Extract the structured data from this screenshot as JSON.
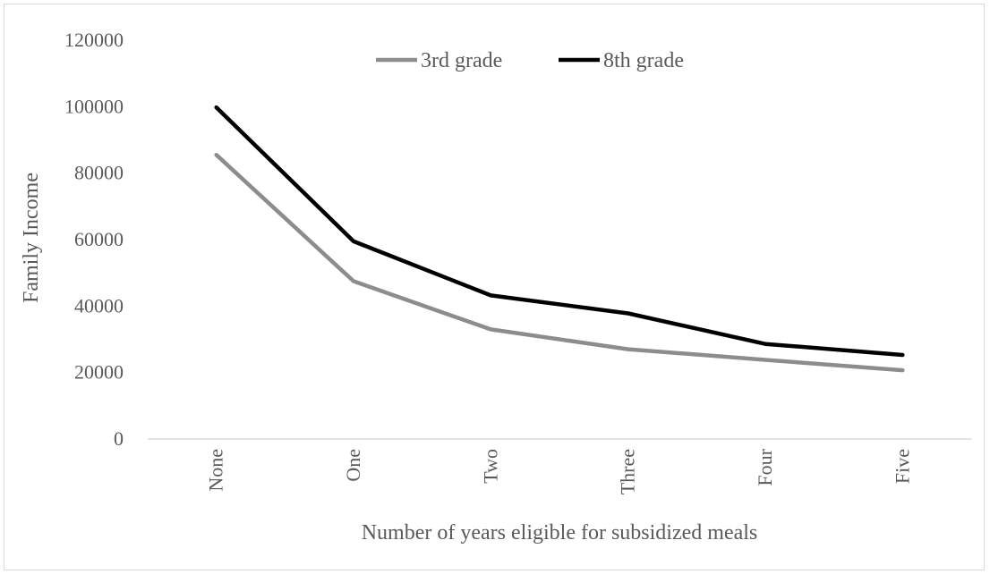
{
  "chart_data": {
    "type": "line",
    "title": "",
    "xlabel": "Number of years eligible for subsidized meals",
    "ylabel": "Family Income",
    "categories": [
      "None",
      "One",
      "Two",
      "Three",
      "Four",
      "Five"
    ],
    "ylim": [
      0,
      120000
    ],
    "yticks": [
      0,
      20000,
      40000,
      60000,
      80000,
      100000,
      120000
    ],
    "ytick_labels": [
      "0",
      "20000",
      "40000",
      "60000",
      "80000",
      "100000",
      "120000"
    ],
    "grid": false,
    "legend_position": "top",
    "series": [
      {
        "name": "3rd grade",
        "color": "#8c8c8c",
        "values": [
          85500,
          47500,
          33000,
          27000,
          23800,
          20700
        ]
      },
      {
        "name": "8th grade",
        "color": "#000000",
        "values": [
          99800,
          59500,
          43200,
          37800,
          28600,
          25300
        ]
      }
    ]
  }
}
